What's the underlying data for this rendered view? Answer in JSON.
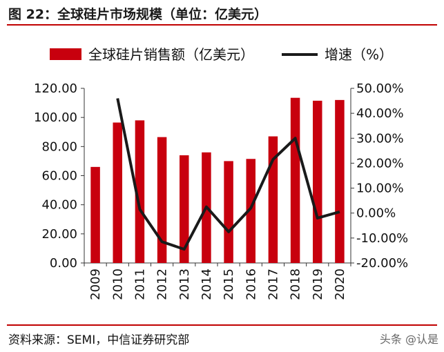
{
  "header": {
    "title": "图 22：全球硅片市场规模（单位：亿美元）"
  },
  "footer": {
    "source": "资料来源：SEMI，中信证券研究部",
    "watermark": "头条 @认是"
  },
  "colors": {
    "bar": "#c8000e",
    "line": "#1a1a1a",
    "rule": "#c00000"
  },
  "chart_data": {
    "type": "bar",
    "categories": [
      "2009",
      "2010",
      "2011",
      "2012",
      "2013",
      "2014",
      "2015",
      "2016",
      "2017",
      "2018",
      "2019",
      "2020"
    ],
    "series": [
      {
        "name": "全球硅片销售额（亿美元）",
        "type": "bar",
        "axis": "left",
        "values": [
          66,
          96.5,
          98,
          86.5,
          74,
          76,
          70,
          71.5,
          87,
          113.5,
          111.5,
          112
        ]
      },
      {
        "name": "增速（%）",
        "type": "line",
        "axis": "right",
        "values": [
          null,
          46,
          1.5,
          -11.5,
          -14.5,
          2.5,
          -7.5,
          2,
          21.5,
          30,
          -2,
          0.5
        ]
      }
    ],
    "y_left": {
      "ylim": [
        0,
        120
      ],
      "ticks": [
        "0.00",
        "20.00",
        "40.00",
        "60.00",
        "80.00",
        "100.00",
        "120.00"
      ]
    },
    "y_right": {
      "ylim": [
        -20,
        50
      ],
      "ticks": [
        "-20.00%",
        "-10.00%",
        "0.00%",
        "10.00%",
        "20.00%",
        "30.00%",
        "40.00%",
        "50.00%"
      ]
    },
    "grid": false,
    "legend": "top"
  }
}
